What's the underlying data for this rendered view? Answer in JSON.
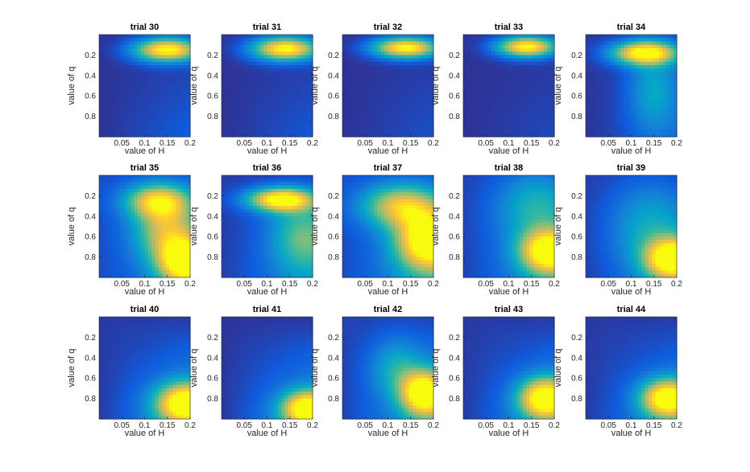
{
  "chart_data": {
    "type": "heatmap",
    "xlabel": "value of H",
    "ylabel": "value of q",
    "xlim": [
      0,
      0.2
    ],
    "ylim": [
      0,
      1
    ],
    "y_reversed": true,
    "xticks": [
      0.05,
      0.1,
      0.15,
      0.2
    ],
    "xtick_labels": [
      "0.05",
      "0.1",
      "0.15",
      "0.2"
    ],
    "yticks": [
      0.2,
      0.4,
      0.6,
      0.8
    ],
    "ytick_labels": [
      "0.2",
      "0.4",
      "0.6",
      "0.8"
    ],
    "grid": false,
    "colormap": [
      "#352a87",
      "#0f5cdd",
      "#1481d6",
      "#06a4ca",
      "#2eb7a4",
      "#87bf77",
      "#d1bb59",
      "#fec832",
      "#f9fb0e"
    ],
    "layout": {
      "rows": 3,
      "cols": 5
    },
    "panels": [
      {
        "title": "trial 30",
        "peaks": [
          {
            "h": 0.15,
            "q": 0.15,
            "sh": 0.05,
            "sq": 0.08,
            "a": 1.0
          }
        ],
        "diag": 0.12,
        "floor": 0.02
      },
      {
        "title": "trial 31",
        "peaks": [
          {
            "h": 0.14,
            "q": 0.14,
            "sh": 0.05,
            "sq": 0.08,
            "a": 1.0
          }
        ],
        "diag": 0.1,
        "floor": 0.02
      },
      {
        "title": "trial 32",
        "peaks": [
          {
            "h": 0.14,
            "q": 0.13,
            "sh": 0.05,
            "sq": 0.07,
            "a": 1.0
          }
        ],
        "diag": 0.08,
        "floor": 0.02
      },
      {
        "title": "trial 33",
        "peaks": [
          {
            "h": 0.14,
            "q": 0.12,
            "sh": 0.045,
            "sq": 0.07,
            "a": 1.0
          }
        ],
        "diag": 0.06,
        "floor": 0.02
      },
      {
        "title": "trial 34",
        "peaks": [
          {
            "h": 0.13,
            "q": 0.18,
            "sh": 0.05,
            "sq": 0.08,
            "a": 1.0
          },
          {
            "h": 0.15,
            "q": 0.55,
            "sh": 0.04,
            "sq": 0.3,
            "a": 0.32
          }
        ],
        "diag": 0.1,
        "floor": 0.03
      },
      {
        "title": "trial 35",
        "peaks": [
          {
            "h": 0.13,
            "q": 0.25,
            "sh": 0.05,
            "sq": 0.12,
            "a": 0.75
          },
          {
            "h": 0.19,
            "q": 0.85,
            "sh": 0.04,
            "sq": 0.15,
            "a": 1.0
          },
          {
            "h": 0.15,
            "q": 0.55,
            "sh": 0.05,
            "sq": 0.2,
            "a": 0.6
          }
        ],
        "diag": 0.2,
        "floor": 0.08
      },
      {
        "title": "trial 36",
        "peaks": [
          {
            "h": 0.13,
            "q": 0.24,
            "sh": 0.05,
            "sq": 0.08,
            "a": 1.0
          },
          {
            "h": 0.18,
            "q": 0.6,
            "sh": 0.05,
            "sq": 0.25,
            "a": 0.45
          }
        ],
        "diag": 0.2,
        "floor": 0.05
      },
      {
        "title": "trial 37",
        "peaks": [
          {
            "h": 0.19,
            "q": 0.65,
            "sh": 0.05,
            "sq": 0.2,
            "a": 1.0
          },
          {
            "h": 0.13,
            "q": 0.3,
            "sh": 0.06,
            "sq": 0.15,
            "a": 0.7
          }
        ],
        "diag": 0.25,
        "floor": 0.08
      },
      {
        "title": "trial 38",
        "peaks": [
          {
            "h": 0.19,
            "q": 0.75,
            "sh": 0.045,
            "sq": 0.15,
            "a": 1.0
          },
          {
            "h": 0.16,
            "q": 0.3,
            "sh": 0.06,
            "sq": 0.25,
            "a": 0.35
          }
        ],
        "diag": 0.25,
        "floor": 0.06
      },
      {
        "title": "trial 39",
        "peaks": [
          {
            "h": 0.19,
            "q": 0.82,
            "sh": 0.04,
            "sq": 0.14,
            "a": 1.0
          },
          {
            "h": 0.14,
            "q": 0.5,
            "sh": 0.06,
            "sq": 0.3,
            "a": 0.3
          }
        ],
        "diag": 0.2,
        "floor": 0.05
      },
      {
        "title": "trial 40",
        "peaks": [
          {
            "h": 0.19,
            "q": 0.85,
            "sh": 0.045,
            "sq": 0.14,
            "a": 1.0
          }
        ],
        "diag": 0.3,
        "floor": 0.04
      },
      {
        "title": "trial 41",
        "peaks": [
          {
            "h": 0.19,
            "q": 0.9,
            "sh": 0.04,
            "sq": 0.12,
            "a": 1.0
          }
        ],
        "diag": 0.3,
        "floor": 0.03
      },
      {
        "title": "trial 42",
        "peaks": [
          {
            "h": 0.18,
            "q": 0.75,
            "sh": 0.035,
            "sq": 0.15,
            "a": 1.0
          },
          {
            "h": 0.12,
            "q": 0.5,
            "sh": 0.04,
            "sq": 0.2,
            "a": 0.3
          }
        ],
        "diag": 0.3,
        "floor": 0.06
      },
      {
        "title": "trial 43",
        "peaks": [
          {
            "h": 0.18,
            "q": 0.8,
            "sh": 0.04,
            "sq": 0.14,
            "a": 1.0
          }
        ],
        "diag": 0.28,
        "floor": 0.04
      },
      {
        "title": "trial 44",
        "peaks": [
          {
            "h": 0.18,
            "q": 0.8,
            "sh": 0.04,
            "sq": 0.13,
            "a": 1.0
          }
        ],
        "diag": 0.26,
        "floor": 0.04
      }
    ]
  }
}
